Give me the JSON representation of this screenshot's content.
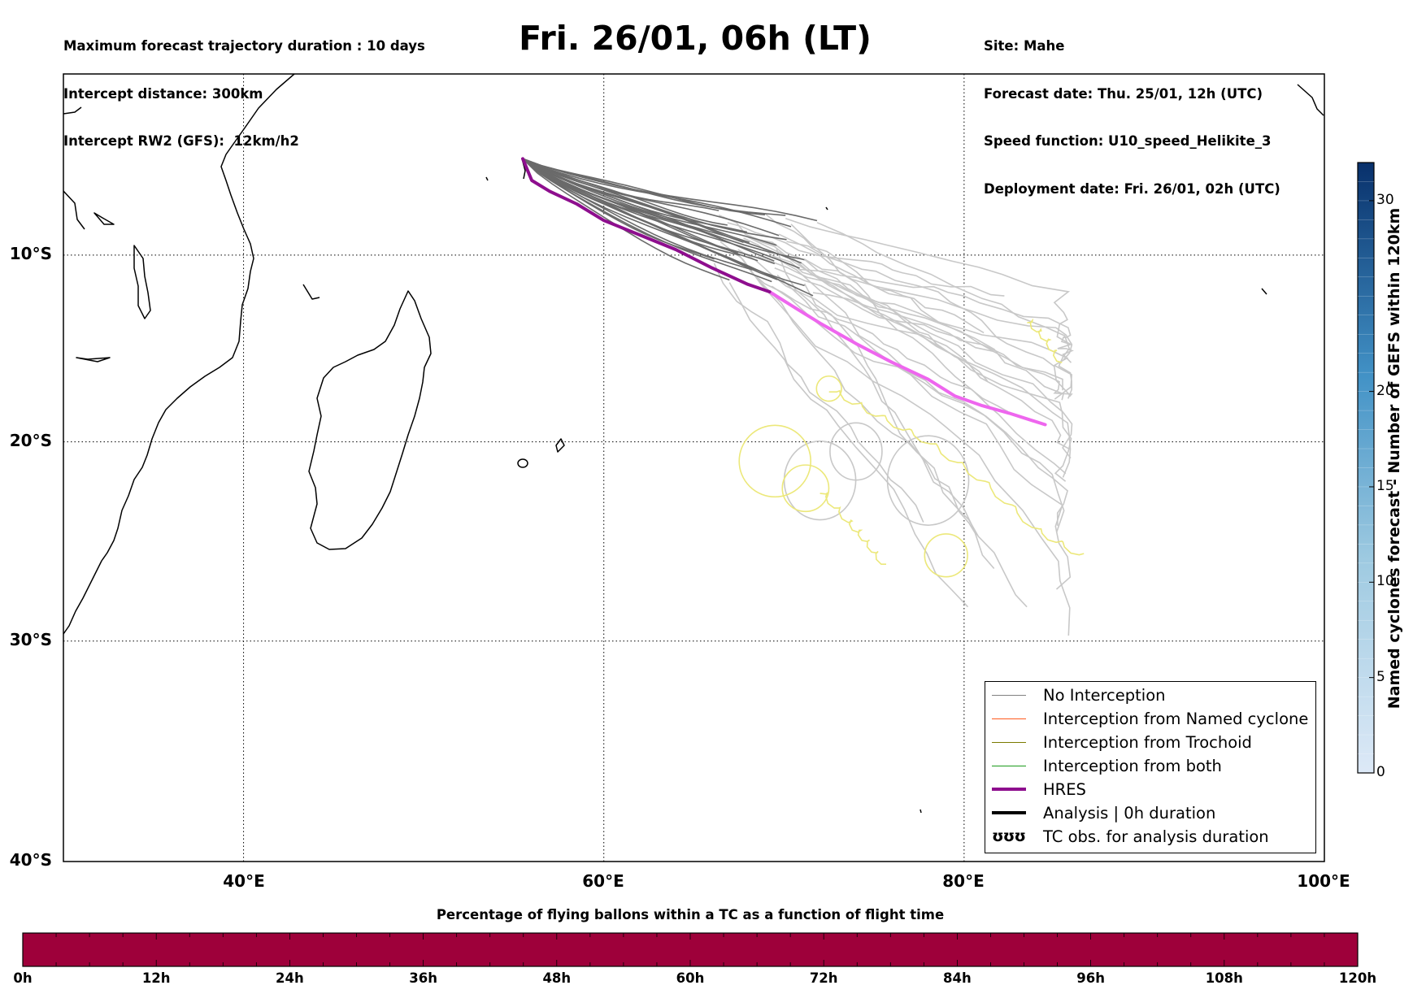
{
  "header": {
    "left_lines": [
      "Maximum forecast trajectory duration : 10 days",
      "Intercept distance: 300km",
      "Intercept RW2 (GFS):  12km/h2"
    ],
    "title": "Fri. 26/01, 06h (LT)",
    "right_lines": [
      "Site: Mahe",
      "Forecast date: Thu. 25/01, 12h (UTC)",
      "Speed function: U10_speed_Helikite_3",
      "Deployment date: Fri. 26/01, 02h (UTC)"
    ]
  },
  "map": {
    "lon_range": [
      30,
      100
    ],
    "lat_range": [
      -40,
      0
    ],
    "lat_labels": [
      "10°S",
      "20°S",
      "30°S",
      "40°S"
    ],
    "lat_values": [
      -10,
      -20,
      -30,
      -40
    ],
    "lon_labels": [
      "40°E",
      "60°E",
      "80°E",
      "100°E"
    ],
    "lon_values": [
      40,
      60,
      80,
      100
    ],
    "gridlines": "dotted",
    "colors": {
      "no_interception": "#6a6a6a",
      "no_interception_late": "#c8c8c8",
      "hres_early": "#8e0e8e",
      "hres_late": "#ee66ee",
      "trochoid_tc": "#ece87a",
      "coast": "#000000"
    },
    "launch_site": {
      "lon": 55.5,
      "lat": -4.7
    },
    "hres_track": [
      [
        55.5,
        -4.7
      ],
      [
        56.0,
        -5.9
      ],
      [
        57.0,
        -6.5
      ],
      [
        58.5,
        -7.2
      ],
      [
        60.0,
        -8.1
      ],
      [
        62.0,
        -8.9
      ],
      [
        64.0,
        -9.7
      ],
      [
        66.0,
        -10.7
      ],
      [
        68.0,
        -11.6
      ],
      [
        69.2,
        -12.0
      ],
      [
        70.5,
        -12.8
      ],
      [
        72.0,
        -13.7
      ],
      [
        74.0,
        -14.8
      ],
      [
        76.0,
        -15.8
      ],
      [
        78.0,
        -16.7
      ],
      [
        79.5,
        -17.6
      ],
      [
        81.0,
        -18.1
      ],
      [
        82.5,
        -18.5
      ],
      [
        84.5,
        -19.1
      ]
    ]
  },
  "colorbar": {
    "title": "Named cyclones forecast - Number of GEFS within 120km",
    "ticks": [
      "0",
      "5",
      "10",
      "15",
      "20",
      "30"
    ],
    "tick_values": [
      0,
      5,
      10,
      15,
      20,
      30
    ],
    "range": [
      0,
      32
    ],
    "color_low": "#dde9f7",
    "color_high": "#08306b"
  },
  "timebar": {
    "title": "Percentage of flying ballons within a TC as a function of flight time",
    "ticks": [
      "0h",
      "12h",
      "24h",
      "36h",
      "48h",
      "60h",
      "72h",
      "84h",
      "96h",
      "108h",
      "120h"
    ],
    "fill_color": "#9e003a"
  },
  "legend": {
    "items": [
      {
        "label": "No Interception",
        "color": "#808080",
        "width": 1.3
      },
      {
        "label": "Interception from Named cyclone",
        "color": "#ff5a1e",
        "width": 1.3
      },
      {
        "label": "Interception from Trochoid",
        "color": "#7a7a00",
        "width": 1.3
      },
      {
        "label": "Interception from both",
        "color": "#1a9a1a",
        "width": 1.3
      },
      {
        "label": "HRES",
        "color": "#8e0e8e",
        "width": 4
      },
      {
        "label": "Analysis | 0h duration",
        "color": "#000000",
        "width": 4
      },
      {
        "label": "TC obs. for analysis duration",
        "glyph": "ʊʊʊ"
      }
    ]
  }
}
